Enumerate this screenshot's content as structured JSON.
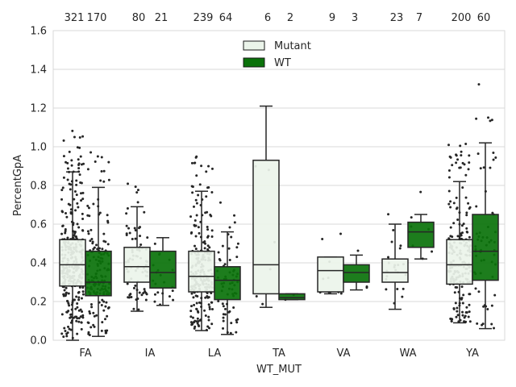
{
  "chart_data": {
    "type": "box",
    "xlabel": "WT_MUT",
    "ylabel": "PercentGpA",
    "ylim": [
      0.0,
      1.6
    ],
    "yticks": [
      "0.0",
      "0.2",
      "0.4",
      "0.6",
      "0.8",
      "1.0",
      "1.2",
      "1.4",
      "1.6"
    ],
    "grid": true,
    "legend_position": "top-center",
    "categories": [
      "FA",
      "IA",
      "LA",
      "TA",
      "VA",
      "WA",
      "YA"
    ],
    "series": [
      {
        "name": "Mutant",
        "color": "#ebf4ea",
        "counts": [
          321,
          80,
          239,
          6,
          9,
          23,
          200
        ],
        "boxes": [
          {
            "q1": 0.28,
            "median": 0.39,
            "q3": 0.52,
            "whisker_low": 0.0,
            "whisker_high": 0.87
          },
          {
            "q1": 0.3,
            "median": 0.38,
            "q3": 0.48,
            "whisker_low": 0.15,
            "whisker_high": 0.69
          },
          {
            "q1": 0.25,
            "median": 0.33,
            "q3": 0.46,
            "whisker_low": 0.05,
            "whisker_high": 0.77
          },
          {
            "q1": 0.24,
            "median": 0.39,
            "q3": 0.93,
            "whisker_low": 0.17,
            "whisker_high": 1.21
          },
          {
            "q1": 0.25,
            "median": 0.36,
            "q3": 0.43,
            "whisker_low": 0.24,
            "whisker_high": 0.43
          },
          {
            "q1": 0.3,
            "median": 0.35,
            "q3": 0.42,
            "whisker_low": 0.16,
            "whisker_high": 0.6
          },
          {
            "q1": 0.29,
            "median": 0.39,
            "q3": 0.52,
            "whisker_low": 0.09,
            "whisker_high": 0.82
          }
        ]
      },
      {
        "name": "WT",
        "color": "#0a720a",
        "counts": [
          170,
          21,
          64,
          2,
          3,
          7,
          60
        ],
        "boxes": [
          {
            "q1": 0.23,
            "median": 0.3,
            "q3": 0.46,
            "whisker_low": 0.02,
            "whisker_high": 0.79
          },
          {
            "q1": 0.27,
            "median": 0.35,
            "q3": 0.46,
            "whisker_low": 0.18,
            "whisker_high": 0.53
          },
          {
            "q1": 0.21,
            "median": 0.31,
            "q3": 0.38,
            "whisker_low": 0.03,
            "whisker_high": 0.56
          },
          {
            "q1": 0.21,
            "median": 0.22,
            "q3": 0.24,
            "whisker_low": 0.21,
            "whisker_high": 0.24
          },
          {
            "q1": 0.3,
            "median": 0.35,
            "q3": 0.39,
            "whisker_low": 0.26,
            "whisker_high": 0.44
          },
          {
            "q1": 0.48,
            "median": 0.56,
            "q3": 0.61,
            "whisker_low": 0.42,
            "whisker_high": 0.65
          },
          {
            "q1": 0.31,
            "median": 0.46,
            "q3": 0.65,
            "whisker_low": 0.06,
            "whisker_high": 1.02
          }
        ]
      }
    ]
  }
}
